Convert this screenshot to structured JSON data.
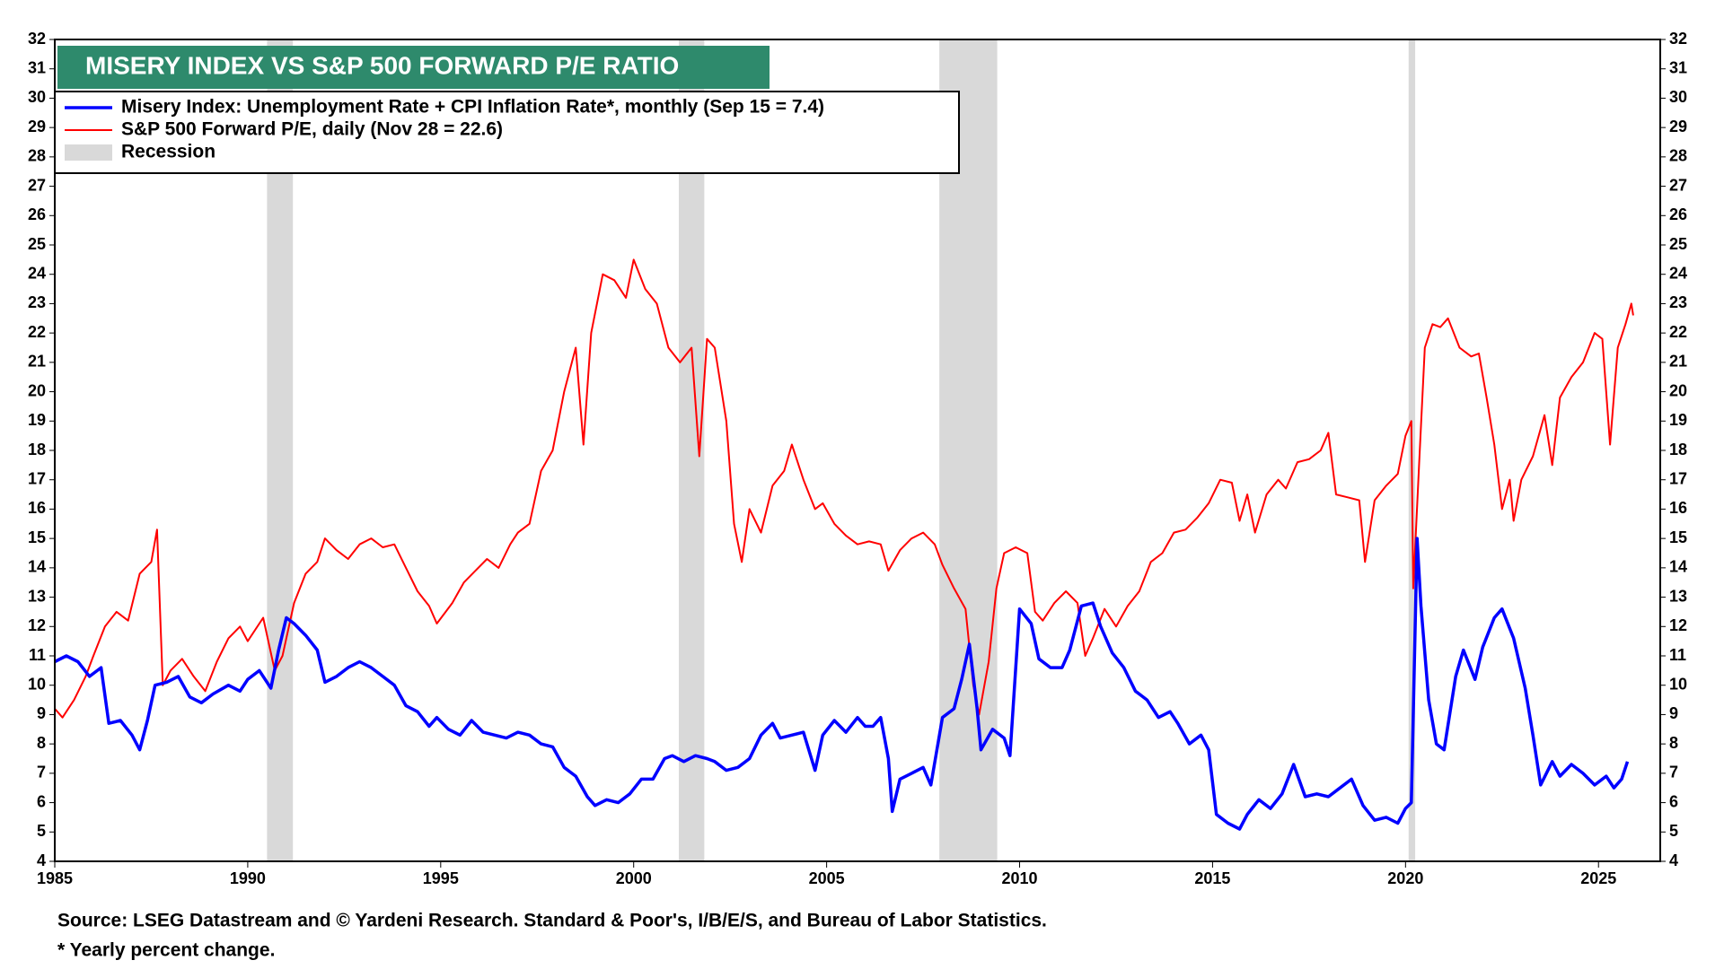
{
  "chart_data": {
    "type": "line",
    "title": "MISERY INDEX VS S&P 500 FORWARD P/E RATIO",
    "source": "Source: LSEG Datastream and © Yardeni Research. Standard & Poor's, I/B/E/S, and Bureau of Labor Statistics.",
    "footnote": "* Yearly percent change.",
    "recession_label": "Recession",
    "recession_color": "#d9d9d9",
    "recessions": [
      [
        1990.5,
        1991.17
      ],
      [
        2001.17,
        2001.83
      ],
      [
        2007.92,
        2009.42
      ],
      [
        2020.08,
        2020.25
      ]
    ],
    "xlim": [
      1985,
      2026.6
    ],
    "xticks": [
      1985,
      1990,
      1995,
      2000,
      2005,
      2010,
      2015,
      2020,
      2025
    ],
    "ylim": [
      4,
      32
    ],
    "yticks": [
      4,
      5,
      6,
      7,
      8,
      9,
      10,
      11,
      12,
      13,
      14,
      15,
      16,
      17,
      18,
      19,
      20,
      21,
      22,
      23,
      24,
      25,
      26,
      27,
      28,
      29,
      30,
      31,
      32
    ],
    "series": [
      {
        "name": "Misery Index: Unemployment Rate + CPI Inflation Rate*, monthly (Sep 15 = 7.4)",
        "color": "#0000ff",
        "width": 3.5,
        "x": [
          1985.0,
          1985.3,
          1985.6,
          1985.9,
          1986.2,
          1986.4,
          1986.7,
          1987.0,
          1987.2,
          1987.4,
          1987.6,
          1987.9,
          1988.2,
          1988.5,
          1988.8,
          1989.1,
          1989.5,
          1989.8,
          1990.0,
          1990.3,
          1990.6,
          1990.8,
          1991.0,
          1991.2,
          1991.5,
          1991.8,
          1992.0,
          1992.3,
          1992.6,
          1992.9,
          1993.2,
          1993.5,
          1993.8,
          1994.1,
          1994.4,
          1994.7,
          1994.9,
          1995.2,
          1995.5,
          1995.8,
          1996.1,
          1996.4,
          1996.7,
          1997.0,
          1997.3,
          1997.6,
          1997.9,
          1998.2,
          1998.5,
          1998.8,
          1999.0,
          1999.3,
          1999.6,
          1999.9,
          2000.2,
          2000.5,
          2000.8,
          2001.0,
          2001.3,
          2001.6,
          2001.9,
          2002.1,
          2002.4,
          2002.7,
          2003.0,
          2003.3,
          2003.6,
          2003.8,
          2004.1,
          2004.4,
          2004.7,
          2004.9,
          2005.2,
          2005.5,
          2005.8,
          2006.0,
          2006.2,
          2006.4,
          2006.6,
          2006.7,
          2006.9,
          2007.2,
          2007.5,
          2007.7,
          2008.0,
          2008.3,
          2008.5,
          2008.7,
          2008.9,
          2009.0,
          2009.3,
          2009.6,
          2009.75,
          2010.0,
          2010.3,
          2010.5,
          2010.8,
          2011.1,
          2011.3,
          2011.6,
          2011.9,
          2012.1,
          2012.4,
          2012.7,
          2013.0,
          2013.3,
          2013.6,
          2013.9,
          2014.1,
          2014.4,
          2014.7,
          2014.9,
          2015.1,
          2015.4,
          2015.7,
          2015.9,
          2016.2,
          2016.5,
          2016.8,
          2017.1,
          2017.4,
          2017.7,
          2018.0,
          2018.3,
          2018.6,
          2018.9,
          2019.2,
          2019.5,
          2019.8,
          2020.0,
          2020.15,
          2020.3,
          2020.4,
          2020.6,
          2020.8,
          2021.0,
          2021.3,
          2021.5,
          2021.8,
          2022.0,
          2022.3,
          2022.5,
          2022.8,
          2023.1,
          2023.3,
          2023.5,
          2023.8,
          2024.0,
          2024.3,
          2024.6,
          2024.9,
          2025.2,
          2025.4,
          2025.6,
          2025.75
        ],
        "values": [
          10.8,
          11.0,
          10.8,
          10.3,
          10.6,
          8.7,
          8.8,
          8.3,
          7.8,
          8.8,
          10.0,
          10.1,
          10.3,
          9.6,
          9.4,
          9.7,
          10.0,
          9.8,
          10.2,
          10.5,
          9.9,
          11.2,
          12.3,
          12.1,
          11.7,
          11.2,
          10.1,
          10.3,
          10.6,
          10.8,
          10.6,
          10.3,
          10.0,
          9.3,
          9.1,
          8.6,
          8.9,
          8.5,
          8.3,
          8.8,
          8.4,
          8.3,
          8.2,
          8.4,
          8.3,
          8.0,
          7.9,
          7.2,
          6.9,
          6.2,
          5.9,
          6.1,
          6.0,
          6.3,
          6.8,
          6.8,
          7.5,
          7.6,
          7.4,
          7.6,
          7.5,
          7.4,
          7.1,
          7.2,
          7.5,
          8.3,
          8.7,
          8.2,
          8.3,
          8.4,
          7.1,
          8.3,
          8.8,
          8.4,
          8.9,
          8.6,
          8.6,
          8.9,
          7.5,
          5.7,
          6.8,
          7.0,
          7.2,
          6.6,
          8.9,
          9.2,
          10.2,
          11.4,
          9.2,
          7.8,
          8.5,
          8.2,
          7.6,
          12.6,
          12.1,
          10.9,
          10.6,
          10.6,
          11.2,
          12.7,
          12.8,
          12.0,
          11.1,
          10.6,
          9.8,
          9.5,
          8.9,
          9.1,
          8.7,
          8.0,
          8.3,
          7.8,
          5.6,
          5.3,
          5.1,
          5.6,
          6.1,
          5.8,
          6.3,
          7.3,
          6.2,
          6.3,
          6.2,
          6.5,
          6.8,
          5.9,
          5.4,
          5.5,
          5.3,
          5.8,
          6.0,
          15.0,
          12.7,
          9.5,
          8.0,
          7.8,
          10.3,
          11.2,
          10.2,
          11.3,
          12.3,
          12.6,
          11.6,
          9.9,
          8.3,
          6.6,
          7.4,
          6.9,
          7.3,
          7.0,
          6.6,
          6.9,
          6.5,
          6.8,
          7.4
        ]
      },
      {
        "name": "S&P 500 Forward P/E, daily (Nov 28 = 22.6)",
        "color": "#ff0000",
        "width": 2,
        "x": [
          1985.0,
          1985.2,
          1985.5,
          1985.8,
          1986.0,
          1986.3,
          1986.6,
          1986.9,
          1987.2,
          1987.5,
          1987.65,
          1987.8,
          1988.0,
          1988.3,
          1988.6,
          1988.9,
          1989.2,
          1989.5,
          1989.8,
          1990.0,
          1990.4,
          1990.7,
          1990.9,
          1991.2,
          1991.5,
          1991.8,
          1992.0,
          1992.3,
          1992.6,
          1992.9,
          1993.2,
          1993.5,
          1993.8,
          1994.1,
          1994.4,
          1994.7,
          1994.9,
          1995.3,
          1995.6,
          1995.9,
          1996.2,
          1996.5,
          1996.8,
          1997.0,
          1997.3,
          1997.6,
          1997.9,
          1998.2,
          1998.5,
          1998.7,
          1998.9,
          1999.2,
          1999.5,
          1999.8,
          2000.0,
          2000.3,
          2000.6,
          2000.9,
          2001.2,
          2001.5,
          2001.7,
          2001.9,
          2002.1,
          2002.4,
          2002.6,
          2002.8,
          2003.0,
          2003.3,
          2003.6,
          2003.9,
          2004.1,
          2004.4,
          2004.7,
          2004.9,
          2005.2,
          2005.5,
          2005.8,
          2006.1,
          2006.4,
          2006.6,
          2006.9,
          2007.2,
          2007.5,
          2007.8,
          2008.0,
          2008.3,
          2008.6,
          2008.8,
          2008.95,
          2009.2,
          2009.4,
          2009.6,
          2009.9,
          2010.2,
          2010.4,
          2010.6,
          2010.9,
          2011.2,
          2011.5,
          2011.7,
          2011.9,
          2012.2,
          2012.5,
          2012.8,
          2013.1,
          2013.4,
          2013.7,
          2014.0,
          2014.3,
          2014.6,
          2014.9,
          2015.2,
          2015.5,
          2015.7,
          2015.9,
          2016.1,
          2016.4,
          2016.7,
          2016.9,
          2017.2,
          2017.5,
          2017.8,
          2018.0,
          2018.2,
          2018.5,
          2018.8,
          2018.95,
          2019.2,
          2019.5,
          2019.8,
          2020.0,
          2020.15,
          2020.2,
          2020.35,
          2020.5,
          2020.7,
          2020.9,
          2021.1,
          2021.4,
          2021.7,
          2021.9,
          2022.1,
          2022.3,
          2022.5,
          2022.7,
          2022.8,
          2023.0,
          2023.3,
          2023.6,
          2023.8,
          2024.0,
          2024.3,
          2024.6,
          2024.9,
          2025.1,
          2025.3,
          2025.5,
          2025.7,
          2025.85,
          2025.9
        ],
        "values": [
          9.2,
          8.9,
          9.5,
          10.3,
          11.0,
          12.0,
          12.5,
          12.2,
          13.8,
          14.2,
          15.3,
          10.0,
          10.5,
          10.9,
          10.3,
          9.8,
          10.8,
          11.6,
          12.0,
          11.5,
          12.3,
          10.5,
          11.0,
          12.8,
          13.8,
          14.2,
          15.0,
          14.6,
          14.3,
          14.8,
          15.0,
          14.7,
          14.8,
          14.0,
          13.2,
          12.7,
          12.1,
          12.8,
          13.5,
          13.9,
          14.3,
          14.0,
          14.8,
          15.2,
          15.5,
          17.3,
          18.0,
          20.0,
          21.5,
          18.2,
          22.0,
          24.0,
          23.8,
          23.2,
          24.5,
          23.5,
          23.0,
          21.5,
          21.0,
          21.5,
          17.8,
          21.8,
          21.5,
          19.0,
          15.5,
          14.2,
          16.0,
          15.2,
          16.8,
          17.3,
          18.2,
          17.0,
          16.0,
          16.2,
          15.5,
          15.1,
          14.8,
          14.9,
          14.8,
          13.9,
          14.6,
          15.0,
          15.2,
          14.8,
          14.1,
          13.3,
          12.6,
          10.0,
          9.0,
          10.8,
          13.3,
          14.5,
          14.7,
          14.5,
          12.5,
          12.2,
          12.8,
          13.2,
          12.8,
          11.0,
          11.6,
          12.6,
          12.0,
          12.7,
          13.2,
          14.2,
          14.5,
          15.2,
          15.3,
          15.7,
          16.2,
          17.0,
          16.9,
          15.6,
          16.5,
          15.2,
          16.5,
          17.0,
          16.7,
          17.6,
          17.7,
          18.0,
          18.6,
          16.5,
          16.4,
          16.3,
          14.2,
          16.3,
          16.8,
          17.2,
          18.5,
          19.0,
          13.3,
          17.5,
          21.5,
          22.3,
          22.2,
          22.5,
          21.5,
          21.2,
          21.3,
          19.8,
          18.2,
          16.0,
          17.0,
          15.6,
          17.0,
          17.8,
          19.2,
          17.5,
          19.8,
          20.5,
          21.0,
          22.0,
          21.8,
          18.2,
          21.5,
          22.3,
          23.0,
          22.6
        ]
      }
    ]
  }
}
